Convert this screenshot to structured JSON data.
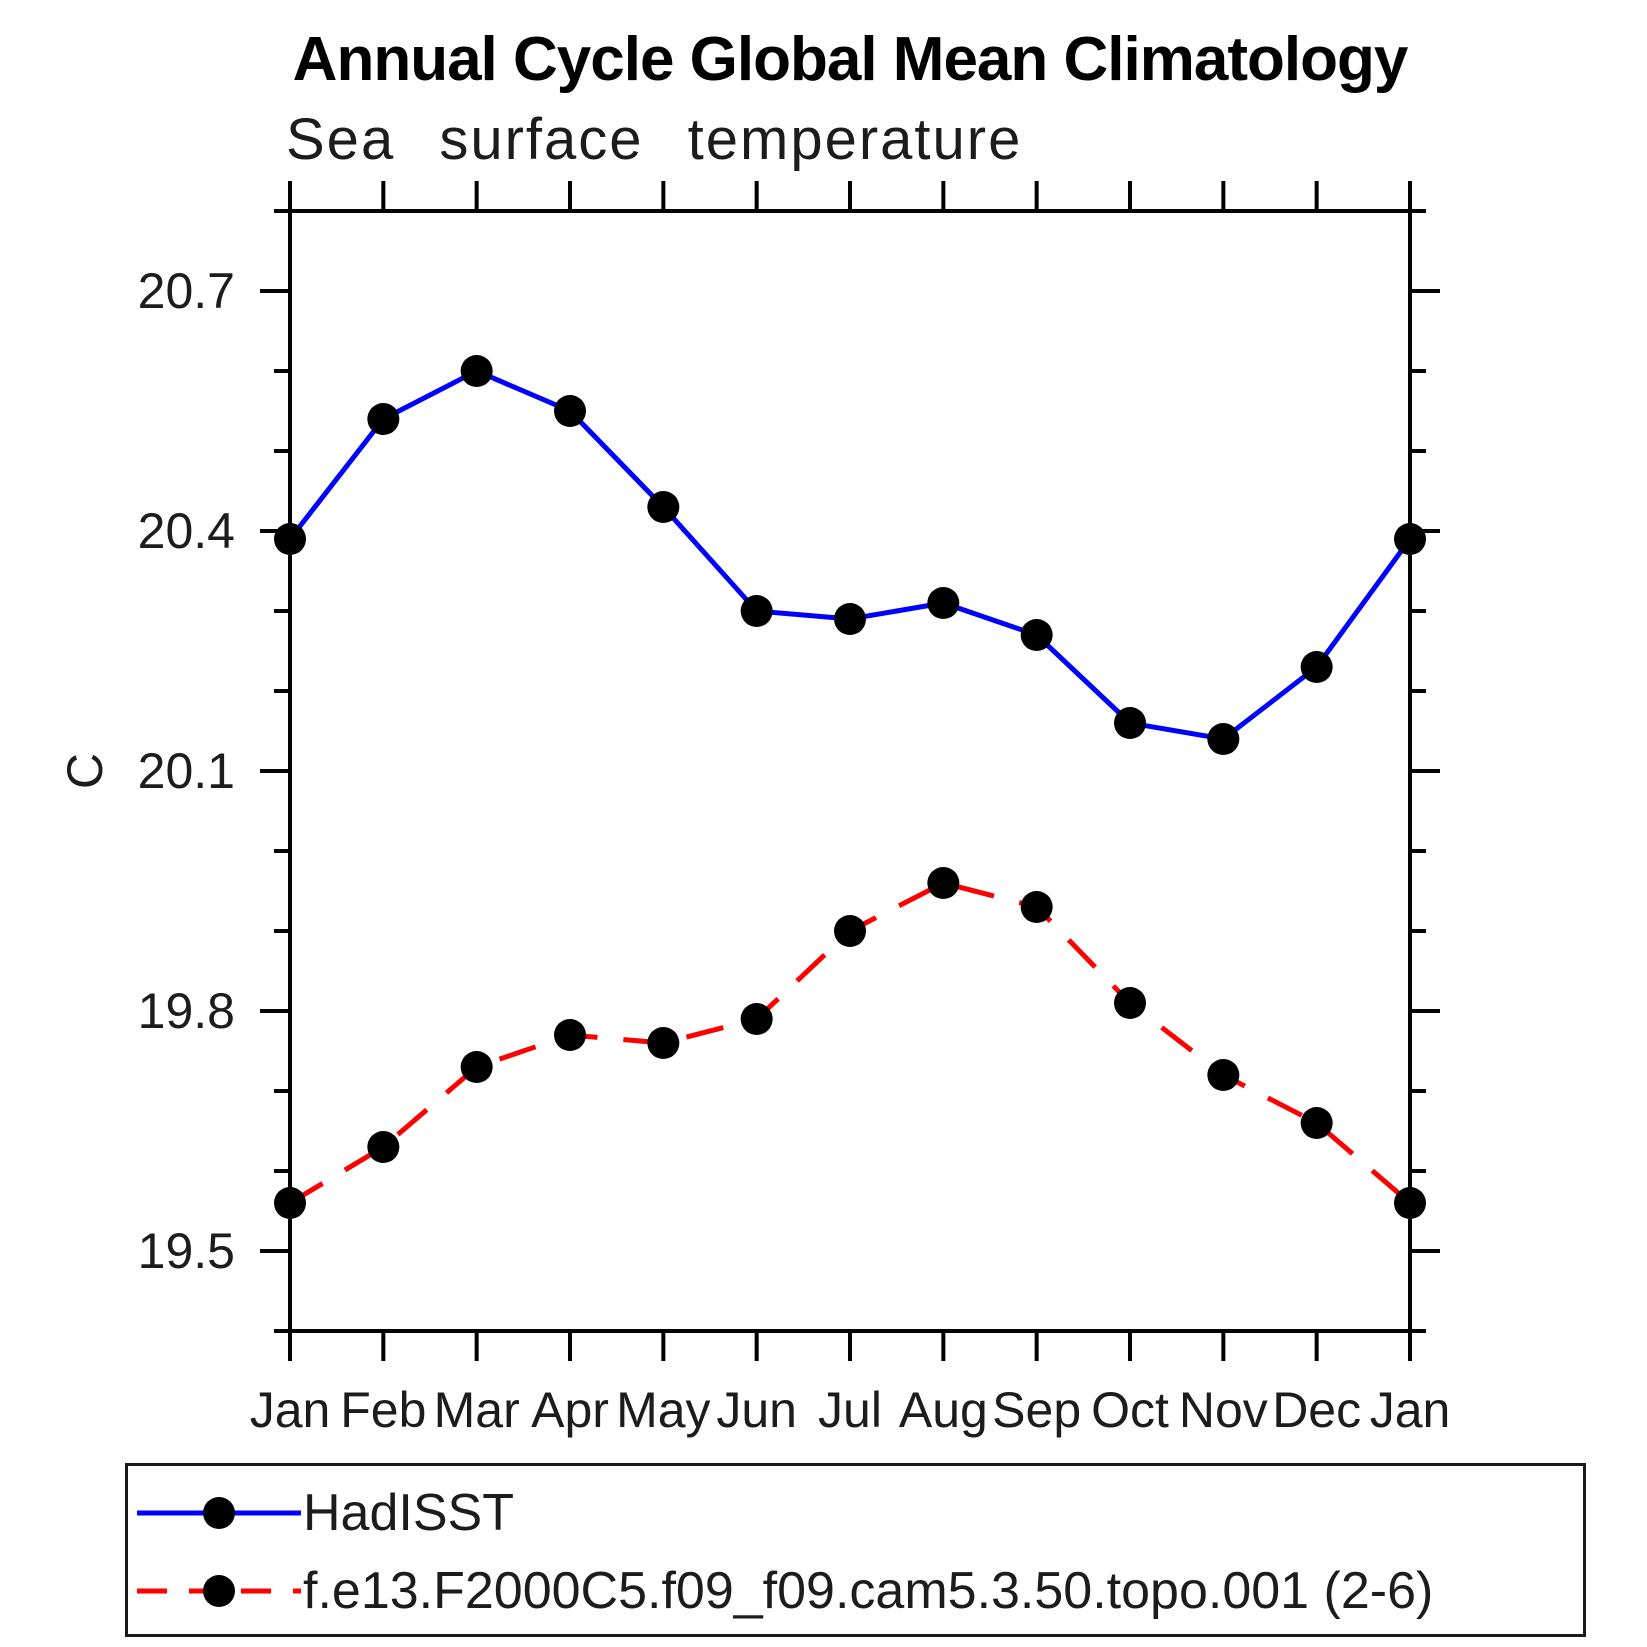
{
  "title": "Annual Cycle Global Mean Climatology",
  "subtitle": "Sea surface temperature",
  "y_axis": {
    "unit_label": "C"
  },
  "colors": {
    "hadisst_line": "#0000ff",
    "model_line": "#ff0000",
    "marker": "#000000",
    "axis": "#000000"
  },
  "chart_data": {
    "type": "line",
    "title": "Annual Cycle Global Mean Climatology",
    "subtitle": "Sea surface temperature",
    "ylabel": "C",
    "x_categories": [
      "Jan",
      "Feb",
      "Mar",
      "Apr",
      "May",
      "Jun",
      "Jul",
      "Aug",
      "Sep",
      "Oct",
      "Nov",
      "Dec",
      "Jan"
    ],
    "ylim": [
      19.4,
      20.8
    ],
    "y_major_ticks": [
      19.5,
      19.8,
      20.1,
      20.4,
      20.7
    ],
    "y_minor_step": 0.1,
    "grid": false,
    "legend_position": "bottom",
    "series": [
      {
        "name": "HadISST",
        "color": "#0000ff",
        "line_style": "solid",
        "marker": "circle",
        "marker_color": "#000000",
        "values": [
          20.39,
          20.54,
          20.6,
          20.55,
          20.43,
          20.3,
          20.29,
          20.31,
          20.27,
          20.16,
          20.14,
          20.23,
          20.39
        ]
      },
      {
        "name": "f.e13.F2000C5.f09_f09.cam5.3.50.topo.001 (2-6)",
        "color": "#ff0000",
        "line_style": "dashed",
        "marker": "circle",
        "marker_color": "#000000",
        "values": [
          19.56,
          19.63,
          19.73,
          19.77,
          19.76,
          19.79,
          19.9,
          19.96,
          19.93,
          19.81,
          19.72,
          19.66,
          19.56
        ]
      }
    ]
  }
}
